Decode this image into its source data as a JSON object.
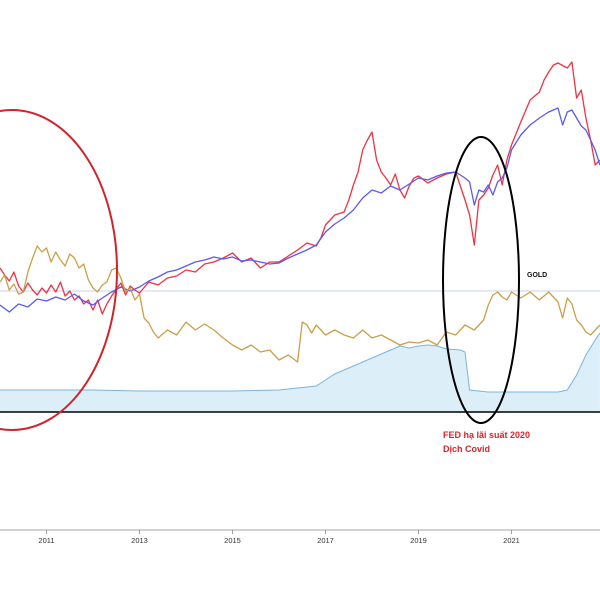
{
  "chart_data": {
    "type": "line",
    "title": "",
    "xlabel": "",
    "ylabel": "",
    "xlim": [
      2010.0,
      2022.9
    ],
    "x_ticks": [
      "2011",
      "2013",
      "2015",
      "2017",
      "2019",
      "2021"
    ],
    "grid": false,
    "reference_line_label": "GOLD",
    "annotation": {
      "lines": [
        "FED hạ lãi suất 2020",
        "Dịch Covid"
      ],
      "color": "#d9262b"
    },
    "highlight_ellipses": [
      {
        "color": "#d0232a",
        "x_range": [
          2009.5,
          2012.5
        ]
      },
      {
        "color": "#000000",
        "x_range": [
          2019.4,
          2020.9
        ]
      }
    ],
    "series": [
      {
        "color": "#ee3344",
        "values": [
          [
            2010.0,
            268
          ],
          [
            2010.1,
            275
          ],
          [
            2010.2,
            281
          ],
          [
            2010.3,
            272
          ],
          [
            2010.4,
            286
          ],
          [
            2010.5,
            292
          ],
          [
            2010.6,
            283
          ],
          [
            2010.7,
            290
          ],
          [
            2010.8,
            295
          ],
          [
            2010.9,
            288
          ],
          [
            2011.0,
            293
          ],
          [
            2011.1,
            285
          ],
          [
            2011.2,
            292
          ],
          [
            2011.3,
            282
          ],
          [
            2011.4,
            296
          ],
          [
            2011.5,
            291
          ],
          [
            2011.6,
            300
          ],
          [
            2011.7,
            296
          ],
          [
            2011.8,
            304
          ],
          [
            2011.9,
            300
          ],
          [
            2012.0,
            310
          ],
          [
            2012.1,
            300
          ],
          [
            2012.2,
            314
          ],
          [
            2012.3,
            304
          ],
          [
            2012.4,
            296
          ],
          [
            2012.5,
            289
          ],
          [
            2012.6,
            283
          ],
          [
            2012.7,
            295
          ],
          [
            2012.8,
            286
          ],
          [
            2012.9,
            290
          ],
          [
            2013.0,
            293
          ],
          [
            2013.2,
            282
          ],
          [
            2013.4,
            285
          ],
          [
            2013.6,
            278
          ],
          [
            2013.8,
            276
          ],
          [
            2014.0,
            270
          ],
          [
            2014.2,
            272
          ],
          [
            2014.4,
            264
          ],
          [
            2014.6,
            262
          ],
          [
            2014.8,
            258
          ],
          [
            2015.0,
            253
          ],
          [
            2015.2,
            262
          ],
          [
            2015.4,
            258
          ],
          [
            2015.6,
            268
          ],
          [
            2015.8,
            262
          ],
          [
            2016.0,
            262
          ],
          [
            2016.2,
            256
          ],
          [
            2016.4,
            250
          ],
          [
            2016.6,
            243
          ],
          [
            2016.8,
            246
          ],
          [
            2016.9,
            238
          ],
          [
            2017.0,
            225
          ],
          [
            2017.2,
            215
          ],
          [
            2017.4,
            212
          ],
          [
            2017.5,
            200
          ],
          [
            2017.6,
            185
          ],
          [
            2017.7,
            172
          ],
          [
            2017.8,
            150
          ],
          [
            2017.9,
            140
          ],
          [
            2018.0,
            132
          ],
          [
            2018.1,
            160
          ],
          [
            2018.2,
            172
          ],
          [
            2018.3,
            178
          ],
          [
            2018.4,
            185
          ],
          [
            2018.5,
            174
          ],
          [
            2018.6,
            190
          ],
          [
            2018.7,
            198
          ],
          [
            2018.8,
            186
          ],
          [
            2018.9,
            178
          ],
          [
            2019.0,
            176
          ],
          [
            2019.2,
            183
          ],
          [
            2019.4,
            178
          ],
          [
            2019.6,
            174
          ],
          [
            2019.8,
            172
          ],
          [
            2020.0,
            200
          ],
          [
            2020.1,
            215
          ],
          [
            2020.2,
            245
          ],
          [
            2020.3,
            200
          ],
          [
            2020.4,
            195
          ],
          [
            2020.5,
            188
          ],
          [
            2020.6,
            175
          ],
          [
            2020.7,
            165
          ],
          [
            2020.8,
            185
          ],
          [
            2020.9,
            160
          ],
          [
            2021.0,
            145
          ],
          [
            2021.2,
            122
          ],
          [
            2021.4,
            100
          ],
          [
            2021.6,
            92
          ],
          [
            2021.7,
            80
          ],
          [
            2021.8,
            72
          ],
          [
            2021.9,
            65
          ],
          [
            2022.0,
            63
          ],
          [
            2022.2,
            68
          ],
          [
            2022.3,
            62
          ],
          [
            2022.4,
            98
          ],
          [
            2022.5,
            90
          ],
          [
            2022.6,
            118
          ],
          [
            2022.7,
            140
          ],
          [
            2022.8,
            165
          ],
          [
            2022.9,
            160
          ]
        ]
      },
      {
        "color": "#5b5bee",
        "values": [
          [
            2010.0,
            305
          ],
          [
            2010.2,
            312
          ],
          [
            2010.4,
            304
          ],
          [
            2010.6,
            307
          ],
          [
            2010.8,
            299
          ],
          [
            2011.0,
            301
          ],
          [
            2011.2,
            297
          ],
          [
            2011.4,
            300
          ],
          [
            2011.6,
            294
          ],
          [
            2011.8,
            301
          ],
          [
            2012.0,
            305
          ],
          [
            2012.2,
            298
          ],
          [
            2012.4,
            292
          ],
          [
            2012.6,
            287
          ],
          [
            2012.8,
            291
          ],
          [
            2013.0,
            287
          ],
          [
            2013.2,
            281
          ],
          [
            2013.4,
            277
          ],
          [
            2013.6,
            272
          ],
          [
            2013.8,
            270
          ],
          [
            2014.0,
            266
          ],
          [
            2014.2,
            262
          ],
          [
            2014.4,
            260
          ],
          [
            2014.6,
            257
          ],
          [
            2014.8,
            259
          ],
          [
            2015.0,
            257
          ],
          [
            2015.2,
            261
          ],
          [
            2015.4,
            260
          ],
          [
            2015.6,
            262
          ],
          [
            2015.8,
            264
          ],
          [
            2016.0,
            263
          ],
          [
            2016.2,
            258
          ],
          [
            2016.4,
            254
          ],
          [
            2016.6,
            250
          ],
          [
            2016.8,
            245
          ],
          [
            2017.0,
            232
          ],
          [
            2017.2,
            224
          ],
          [
            2017.4,
            218
          ],
          [
            2017.6,
            210
          ],
          [
            2017.8,
            198
          ],
          [
            2018.0,
            190
          ],
          [
            2018.2,
            193
          ],
          [
            2018.4,
            186
          ],
          [
            2018.6,
            190
          ],
          [
            2018.8,
            184
          ],
          [
            2019.0,
            178
          ],
          [
            2019.2,
            180
          ],
          [
            2019.4,
            176
          ],
          [
            2019.6,
            173
          ],
          [
            2019.8,
            172
          ],
          [
            2020.0,
            178
          ],
          [
            2020.1,
            182
          ],
          [
            2020.2,
            205
          ],
          [
            2020.3,
            190
          ],
          [
            2020.4,
            192
          ],
          [
            2020.5,
            185
          ],
          [
            2020.6,
            195
          ],
          [
            2020.7,
            182
          ],
          [
            2020.8,
            178
          ],
          [
            2020.9,
            168
          ],
          [
            2021.0,
            150
          ],
          [
            2021.2,
            135
          ],
          [
            2021.4,
            125
          ],
          [
            2021.6,
            118
          ],
          [
            2021.8,
            112
          ],
          [
            2022.0,
            108
          ],
          [
            2022.1,
            125
          ],
          [
            2022.2,
            112
          ],
          [
            2022.3,
            110
          ],
          [
            2022.4,
            118
          ],
          [
            2022.5,
            126
          ],
          [
            2022.6,
            130
          ],
          [
            2022.7,
            140
          ],
          [
            2022.8,
            150
          ],
          [
            2022.9,
            165
          ]
        ]
      },
      {
        "color": "#c9a048",
        "values": [
          [
            2010.0,
            282
          ],
          [
            2010.1,
            275
          ],
          [
            2010.2,
            290
          ],
          [
            2010.3,
            284
          ],
          [
            2010.4,
            294
          ],
          [
            2010.5,
            292
          ],
          [
            2010.6,
            272
          ],
          [
            2010.7,
            258
          ],
          [
            2010.8,
            246
          ],
          [
            2010.9,
            252
          ],
          [
            2011.0,
            248
          ],
          [
            2011.1,
            262
          ],
          [
            2011.2,
            252
          ],
          [
            2011.3,
            260
          ],
          [
            2011.4,
            266
          ],
          [
            2011.5,
            254
          ],
          [
            2011.6,
            258
          ],
          [
            2011.7,
            268
          ],
          [
            2011.8,
            264
          ],
          [
            2011.9,
            280
          ],
          [
            2012.0,
            288
          ],
          [
            2012.1,
            292
          ],
          [
            2012.2,
            285
          ],
          [
            2012.3,
            282
          ],
          [
            2012.4,
            270
          ],
          [
            2012.5,
            268
          ],
          [
            2012.6,
            278
          ],
          [
            2012.7,
            292
          ],
          [
            2012.8,
            288
          ],
          [
            2012.9,
            300
          ],
          [
            2013.0,
            294
          ],
          [
            2013.1,
            318
          ],
          [
            2013.2,
            323
          ],
          [
            2013.3,
            332
          ],
          [
            2013.4,
            338
          ],
          [
            2013.6,
            330
          ],
          [
            2013.8,
            335
          ],
          [
            2014.0,
            322
          ],
          [
            2014.2,
            330
          ],
          [
            2014.4,
            324
          ],
          [
            2014.6,
            330
          ],
          [
            2014.8,
            338
          ],
          [
            2015.0,
            345
          ],
          [
            2015.2,
            350
          ],
          [
            2015.4,
            345
          ],
          [
            2015.6,
            352
          ],
          [
            2015.8,
            350
          ],
          [
            2016.0,
            360
          ],
          [
            2016.2,
            355
          ],
          [
            2016.4,
            362
          ],
          [
            2016.5,
            322
          ],
          [
            2016.6,
            325
          ],
          [
            2016.7,
            333
          ],
          [
            2016.8,
            325
          ],
          [
            2016.9,
            330
          ],
          [
            2017.0,
            335
          ],
          [
            2017.2,
            330
          ],
          [
            2017.4,
            335
          ],
          [
            2017.6,
            338
          ],
          [
            2017.8,
            330
          ],
          [
            2018.0,
            338
          ],
          [
            2018.2,
            335
          ],
          [
            2018.4,
            340
          ],
          [
            2018.6,
            345
          ],
          [
            2018.8,
            342
          ],
          [
            2019.0,
            343
          ],
          [
            2019.2,
            340
          ],
          [
            2019.4,
            345
          ],
          [
            2019.6,
            332
          ],
          [
            2019.8,
            335
          ],
          [
            2020.0,
            325
          ],
          [
            2020.2,
            330
          ],
          [
            2020.4,
            320
          ],
          [
            2020.5,
            305
          ],
          [
            2020.6,
            295
          ],
          [
            2020.7,
            292
          ],
          [
            2020.8,
            297
          ],
          [
            2020.9,
            300
          ],
          [
            2021.0,
            292
          ],
          [
            2021.2,
            298
          ],
          [
            2021.4,
            292
          ],
          [
            2021.6,
            300
          ],
          [
            2021.8,
            292
          ],
          [
            2022.0,
            302
          ],
          [
            2022.1,
            318
          ],
          [
            2022.2,
            298
          ],
          [
            2022.3,
            304
          ],
          [
            2022.4,
            320
          ],
          [
            2022.5,
            325
          ],
          [
            2022.6,
            332
          ],
          [
            2022.7,
            335
          ],
          [
            2022.8,
            330
          ],
          [
            2022.9,
            325
          ]
        ]
      },
      {
        "color": "#7ab5e0",
        "fill": "#dceef8",
        "type": "area",
        "values": [
          [
            2010.0,
            390
          ],
          [
            2011.0,
            390
          ],
          [
            2012.0,
            390
          ],
          [
            2013.0,
            391
          ],
          [
            2014.0,
            391
          ],
          [
            2015.0,
            391
          ],
          [
            2016.0,
            390
          ],
          [
            2016.4,
            388
          ],
          [
            2016.8,
            386
          ],
          [
            2017.0,
            380
          ],
          [
            2017.2,
            374
          ],
          [
            2017.4,
            370
          ],
          [
            2017.6,
            366
          ],
          [
            2017.8,
            362
          ],
          [
            2018.0,
            358
          ],
          [
            2018.2,
            354
          ],
          [
            2018.4,
            350
          ],
          [
            2018.6,
            346
          ],
          [
            2018.8,
            348
          ],
          [
            2019.0,
            346
          ],
          [
            2019.2,
            345
          ],
          [
            2019.4,
            346
          ],
          [
            2019.6,
            349
          ],
          [
            2019.9,
            350
          ],
          [
            2020.0,
            352
          ],
          [
            2020.1,
            390
          ],
          [
            2020.5,
            392
          ],
          [
            2021.0,
            392
          ],
          [
            2021.5,
            392
          ],
          [
            2022.0,
            392
          ],
          [
            2022.2,
            390
          ],
          [
            2022.4,
            375
          ],
          [
            2022.6,
            355
          ],
          [
            2022.8,
            340
          ],
          [
            2022.9,
            333
          ]
        ]
      }
    ]
  }
}
